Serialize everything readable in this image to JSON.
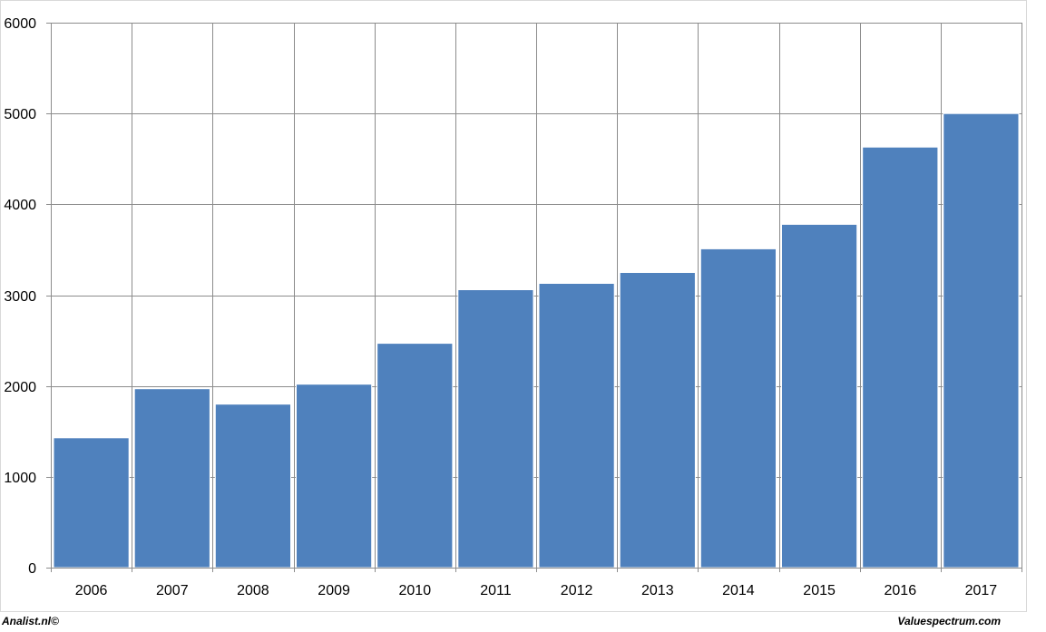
{
  "chart_data": {
    "type": "bar",
    "categories": [
      "2006",
      "2007",
      "2008",
      "2009",
      "2010",
      "2011",
      "2012",
      "2013",
      "2014",
      "2015",
      "2016",
      "2017"
    ],
    "values": [
      1430,
      1970,
      1800,
      2020,
      2470,
      3060,
      3130,
      3250,
      3510,
      3780,
      4630,
      5000
    ],
    "y_ticks": [
      "0",
      "1000",
      "2000",
      "3000",
      "4000",
      "5000",
      "6000"
    ],
    "ylim": [
      0,
      6000
    ],
    "grid": true,
    "bar_color": "#4F81BD"
  },
  "footer": {
    "left": "Analist.nl©",
    "right": "Valuespectrum.com"
  }
}
